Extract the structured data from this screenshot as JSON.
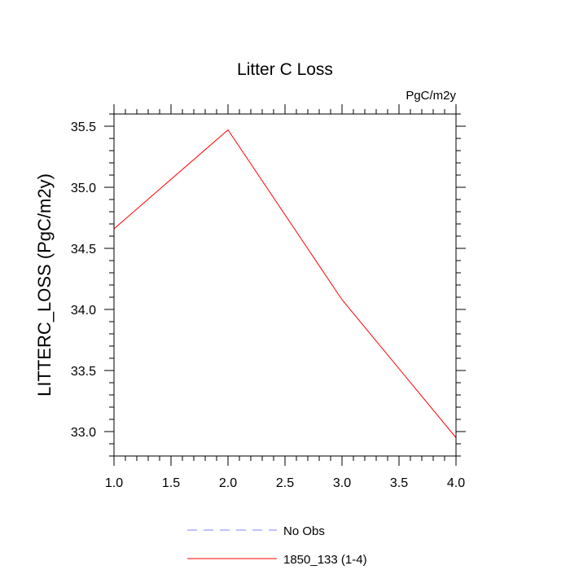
{
  "chart_data": {
    "type": "line",
    "title": "Litter C Loss",
    "units_label": "PgC/m2y",
    "xlabel": "",
    "ylabel": "LITTERC_LOSS  (PgC/m2y)",
    "xlim": [
      1.0,
      4.0
    ],
    "ylim": [
      32.8,
      35.6
    ],
    "xticks": [
      1.0,
      1.5,
      2.0,
      2.5,
      3.0,
      3.5,
      4.0
    ],
    "xtick_labels": [
      "1.0",
      "1.5",
      "2.0",
      "2.5",
      "3.0",
      "3.5",
      "4.0"
    ],
    "yticks": [
      33.0,
      33.5,
      34.0,
      34.5,
      35.0,
      35.5
    ],
    "ytick_labels": [
      "33.0",
      "33.5",
      "34.0",
      "34.5",
      "35.0",
      "35.5"
    ],
    "grid": false,
    "legend_position": "bottom",
    "series": [
      {
        "name": "No Obs",
        "x": [],
        "values": [],
        "color": "#8080ff",
        "dash": "dashed"
      },
      {
        "name": "1850_133 (1-4)",
        "x": [
          1,
          2,
          3,
          4
        ],
        "values": [
          34.66,
          35.47,
          34.08,
          32.95
        ],
        "color": "#ff0000",
        "dash": "solid"
      }
    ]
  }
}
